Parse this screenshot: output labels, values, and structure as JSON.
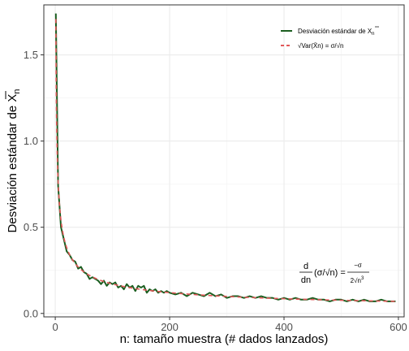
{
  "chart_data": {
    "type": "line",
    "title": "",
    "xlabel": "n: tamaño muestra (# dados lanzados)",
    "ylabel_main": "Desviación estándar de X",
    "ylabel_sub": "n",
    "xlim": [
      -20,
      610
    ],
    "ylim": [
      -0.02,
      1.79
    ],
    "x_ticks": [
      0,
      200,
      400,
      600
    ],
    "x_tick_labels": [
      "0",
      "200",
      "400",
      "600"
    ],
    "y_ticks": [
      0.0,
      0.5,
      1.0,
      1.5
    ],
    "y_tick_labels": [
      "0.0",
      "0.5",
      "1.0",
      "1.5"
    ],
    "grid": true,
    "legend_position": "top-right",
    "sigma": 1.7078,
    "series": [
      {
        "name": "Desviación estándar de X̄n",
        "legend_main": "Desviación estándar de X",
        "legend_sub": "n",
        "color": "#1b5e20",
        "style": "solid",
        "x": [
          1,
          5,
          10,
          15,
          20,
          25,
          30,
          35,
          40,
          45,
          50,
          55,
          60,
          65,
          70,
          75,
          80,
          85,
          90,
          95,
          100,
          105,
          110,
          115,
          120,
          125,
          130,
          135,
          140,
          145,
          150,
          155,
          160,
          165,
          170,
          175,
          180,
          185,
          190,
          195,
          200,
          210,
          220,
          230,
          240,
          250,
          260,
          270,
          280,
          290,
          300,
          310,
          320,
          330,
          340,
          350,
          360,
          370,
          380,
          390,
          400,
          410,
          420,
          430,
          440,
          450,
          460,
          470,
          480,
          490,
          500,
          510,
          520,
          530,
          540,
          550,
          560,
          570,
          580,
          590,
          595
        ],
        "y": [
          1.74,
          0.74,
          0.5,
          0.43,
          0.36,
          0.34,
          0.31,
          0.3,
          0.26,
          0.27,
          0.24,
          0.23,
          0.2,
          0.21,
          0.2,
          0.19,
          0.17,
          0.19,
          0.16,
          0.18,
          0.17,
          0.18,
          0.15,
          0.16,
          0.14,
          0.17,
          0.15,
          0.16,
          0.13,
          0.16,
          0.15,
          0.16,
          0.12,
          0.14,
          0.13,
          0.14,
          0.12,
          0.13,
          0.12,
          0.13,
          0.12,
          0.11,
          0.12,
          0.1,
          0.12,
          0.11,
          0.1,
          0.12,
          0.1,
          0.11,
          0.09,
          0.1,
          0.1,
          0.09,
          0.1,
          0.09,
          0.1,
          0.09,
          0.09,
          0.08,
          0.09,
          0.08,
          0.09,
          0.08,
          0.08,
          0.09,
          0.08,
          0.08,
          0.07,
          0.08,
          0.08,
          0.07,
          0.08,
          0.07,
          0.08,
          0.07,
          0.07,
          0.08,
          0.07,
          0.07,
          0.07
        ]
      },
      {
        "name": "√Var(X̄n) = σ/√n",
        "legend_main": "√Var(X̄n) = σ/√n",
        "color": "#e15759",
        "style": "dashed",
        "function": "sigma / sqrt(n)",
        "x_from": 1,
        "x_to": 595
      }
    ],
    "annotation": {
      "lhs_num": "d",
      "lhs_den": "dn",
      "lhs_body": "(σ/√n) =",
      "rhs_num": "−σ",
      "rhs_den": "2√n",
      "rhs_den_exp": "3",
      "at_x": 470,
      "at_y": 0.16
    }
  }
}
